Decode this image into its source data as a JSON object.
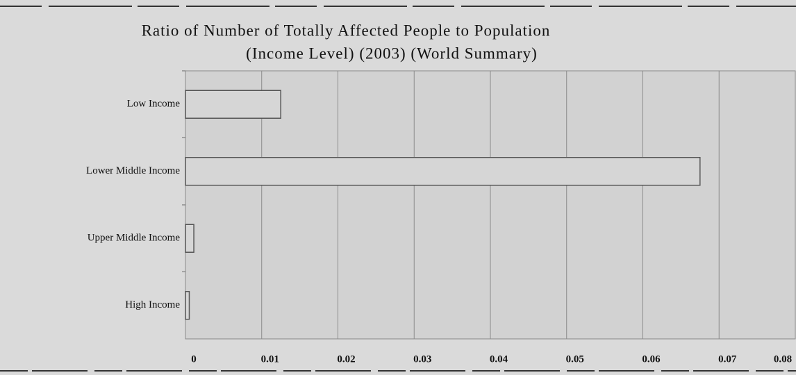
{
  "chart_data": {
    "type": "bar",
    "orientation": "horizontal",
    "title": [
      "Ratio of Number of Totally Affected People to Population",
      "(Income Level) (2003) (World Summary)"
    ],
    "categories": [
      "Low Income",
      "Lower Middle Income",
      "Upper Middle Income",
      "High Income"
    ],
    "values": [
      0.0125,
      0.0675,
      0.0011,
      0.0005
    ],
    "color": "#d6d6d6",
    "xlim": [
      0,
      0.08
    ],
    "xticks": [
      0,
      0.01,
      0.02,
      0.03,
      0.04,
      0.05,
      0.06,
      0.07,
      0.08
    ],
    "grid": true
  }
}
